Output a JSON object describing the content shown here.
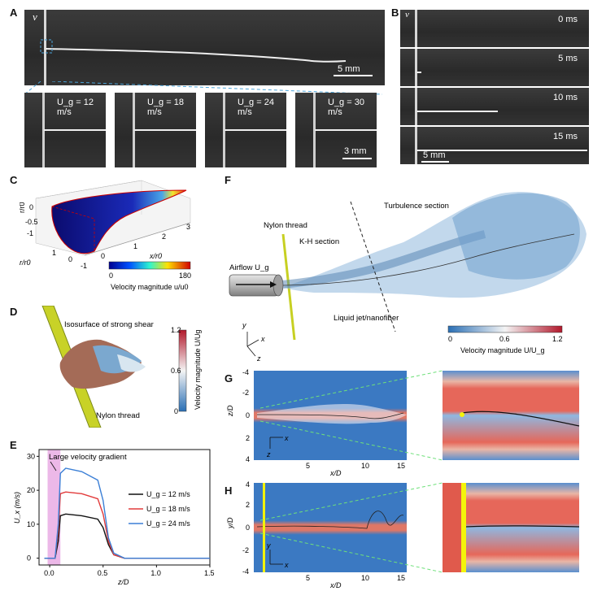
{
  "panels": {
    "A": {
      "label": "A",
      "v_label": "v",
      "scale": "5 mm",
      "insets": [
        {
          "label": "U_g = 12 m/s",
          "u": "U",
          "sub": "g",
          "val": " = 12 m/s"
        },
        {
          "label": "U_g = 18 m/s",
          "u": "U",
          "sub": "g",
          "val": " = 18 m/s"
        },
        {
          "label": "U_g = 24 m/s",
          "u": "U",
          "sub": "g",
          "val": " = 24 m/s"
        },
        {
          "label": "U_g = 30 m/s",
          "u": "U",
          "sub": "g",
          "val": " = 30 m/s"
        }
      ],
      "inset_scale": "3 mm"
    },
    "B": {
      "label": "B",
      "v_label": "v",
      "frames": [
        "0 ms",
        "5 ms",
        "10 ms",
        "15 ms"
      ],
      "scale": "5 mm"
    },
    "C": {
      "label": "C",
      "y_axis": "r/r0",
      "x_axis": "x/r0",
      "z_axis": "r/r0",
      "ticks_y": [
        "0",
        "-1"
      ],
      "ticks_x": [
        "0",
        "1",
        "2",
        "3"
      ],
      "ticks_r": [
        "1",
        "0",
        "-1"
      ],
      "ticks_left": [
        "0",
        "-0.5",
        "-1"
      ],
      "colorbar_min": "0",
      "colorbar_max": "180",
      "colorbar_label": "Velocity magnitude u/u0"
    },
    "D": {
      "label": "D",
      "annot1": "Isosurface of strong shear",
      "annot2": "Nylon thread",
      "colorbar_label": "Velocity magnitude U/Ug",
      "colorbar_ticks": [
        "1.2",
        "0.6",
        "0"
      ]
    },
    "E": {
      "label": "E",
      "annotation": "Large velocity gradient",
      "ylabel": "U_x (m/s)",
      "xlabel": "z/D",
      "xticks": [
        "0.0",
        "0.5",
        "1.0",
        "1.5"
      ],
      "yticks": [
        "0",
        "10",
        "20",
        "30"
      ],
      "legend": [
        "U_g = 12 m/s",
        "U_g = 18 m/s",
        "U_g = 24 m/s"
      ]
    },
    "F": {
      "label": "F",
      "nylon": "Nylon thread",
      "kh": "K-H section",
      "turb": "Turbulence section",
      "airflow": "Airflow U_g",
      "jet": "Liquid jet/nanofiber",
      "colorbar_label": "Velocity magnitude U/U_g",
      "colorbar_ticks": [
        "0",
        "0.6",
        "1.2"
      ],
      "axes": [
        "y",
        "x",
        "z"
      ]
    },
    "G": {
      "label": "G",
      "ylabel": "z/D",
      "xlabel": "x/D",
      "yticks": [
        "-4",
        "-2",
        "0",
        "2",
        "4"
      ],
      "xticks": [
        "5",
        "10",
        "15"
      ],
      "axes": [
        "x",
        "z"
      ]
    },
    "H": {
      "label": "H",
      "ylabel": "y/D",
      "xlabel": "x/D",
      "yticks": [
        "4",
        "2",
        "0",
        "-2",
        "-4"
      ],
      "xticks": [
        "5",
        "10",
        "15"
      ],
      "axes": [
        "y",
        "x"
      ]
    }
  },
  "chart_data": {
    "type": "line",
    "xlabel": "z/D",
    "ylabel": "U_x (m/s)",
    "xlim": [
      -0.1,
      1.5
    ],
    "ylim": [
      -2,
      32
    ],
    "annotation": "Large velocity gradient",
    "legend_position": "right",
    "series": [
      {
        "name": "U_g = 12 m/s",
        "color": "#111111",
        "x": [
          -0.05,
          0.05,
          0.08,
          0.1,
          0.15,
          0.3,
          0.45,
          0.5,
          0.55,
          0.6,
          0.7,
          1.5
        ],
        "y": [
          0,
          0,
          5,
          12.5,
          13,
          12.5,
          11.5,
          9,
          4,
          1,
          0,
          0
        ]
      },
      {
        "name": "U_g = 18 m/s",
        "color": "#e23b3b",
        "x": [
          -0.05,
          0.05,
          0.08,
          0.1,
          0.15,
          0.3,
          0.45,
          0.5,
          0.55,
          0.6,
          0.7,
          1.5
        ],
        "y": [
          0,
          0,
          8,
          19,
          19.5,
          19,
          17.5,
          13,
          5,
          1,
          0,
          0
        ]
      },
      {
        "name": "U_g = 24 m/s",
        "color": "#3b7fd6",
        "x": [
          -0.05,
          0.05,
          0.08,
          0.1,
          0.15,
          0.3,
          0.45,
          0.5,
          0.55,
          0.6,
          0.7,
          1.5
        ],
        "y": [
          0,
          0,
          10,
          25,
          26.5,
          25.5,
          23,
          17,
          6,
          1.5,
          0,
          0
        ]
      }
    ],
    "colors": {
      "highlight": "#e7a6e2",
      "jet_yellow": "#e6e600"
    }
  }
}
